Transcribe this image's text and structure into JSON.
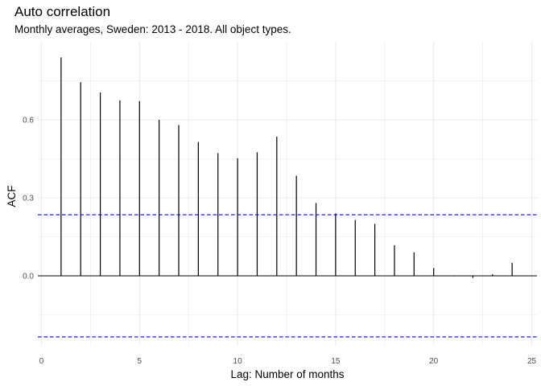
{
  "chart_data": {
    "type": "bar",
    "title": "Auto correlation",
    "subtitle": "Monthly averages, Sweden: 2013 - 2018. All object types.",
    "xlabel": "Lag: Number of months",
    "ylabel": "ACF",
    "xlim": [
      0,
      25
    ],
    "ylim": [
      -0.25,
      0.85
    ],
    "x_ticks": [
      0,
      5,
      10,
      15,
      20,
      25
    ],
    "y_ticks": [
      0.0,
      0.3,
      0.6
    ],
    "y_tick_labels": [
      "0.0",
      "0.3",
      "0.6"
    ],
    "grid": true,
    "lags": [
      1,
      2,
      3,
      4,
      5,
      6,
      7,
      8,
      9,
      10,
      11,
      12,
      13,
      14,
      15,
      16,
      17,
      18,
      19,
      20,
      21,
      22,
      23,
      24
    ],
    "values": [
      0.84,
      0.745,
      0.705,
      0.675,
      0.672,
      0.6,
      0.58,
      0.515,
      0.472,
      0.452,
      0.475,
      0.535,
      0.385,
      0.28,
      0.24,
      0.215,
      0.2,
      0.118,
      0.09,
      0.03,
      0.002,
      -0.008,
      0.006,
      0.05
    ],
    "confidence_bounds": [
      0.235,
      -0.235
    ],
    "colors": {
      "bars": "#000000",
      "bounds": "#0000ff",
      "grid": "#ebebeb"
    }
  }
}
